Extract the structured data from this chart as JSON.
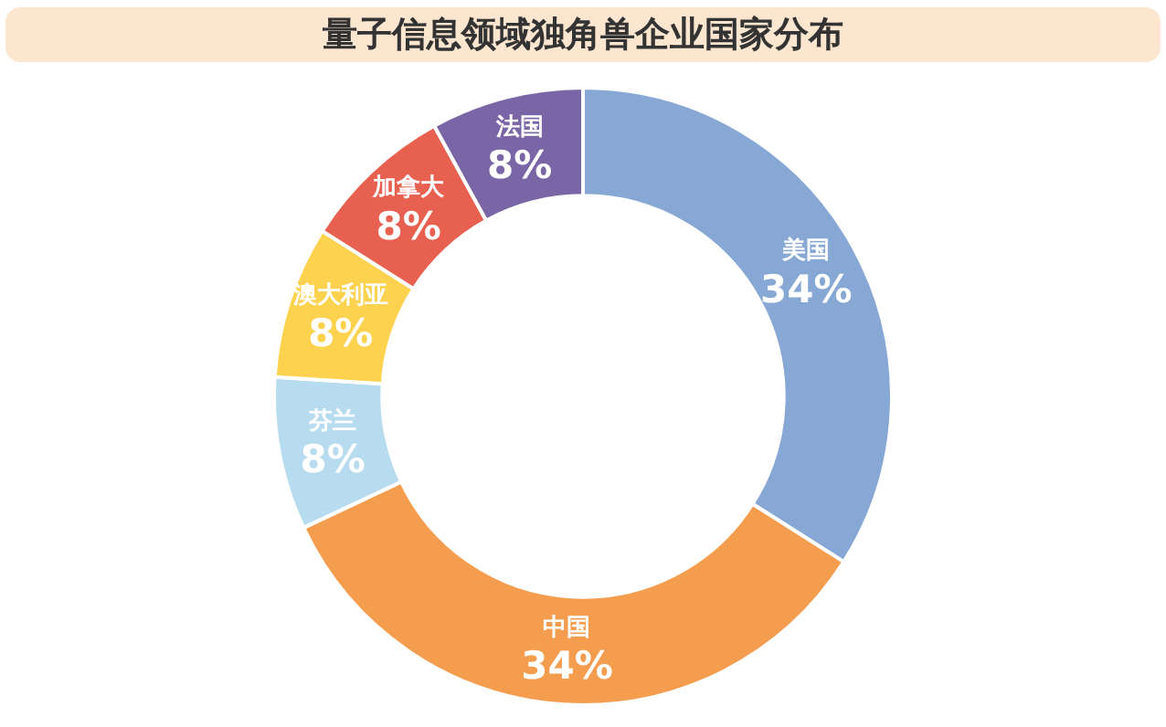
{
  "chart_data": {
    "type": "donut",
    "title": "量子信息领域独角兽企业国家分布",
    "categories": [
      "美国",
      "中国",
      "芬兰",
      "澳大利亚",
      "加拿大",
      "法国"
    ],
    "values": [
      34,
      34,
      8,
      8,
      8,
      8
    ],
    "value_labels": [
      "34%",
      "34%",
      "8%",
      "8%",
      "8%",
      "8%"
    ],
    "colors": [
      "#87a8d4",
      "#f59d4f",
      "#b8dcef",
      "#fdd24f",
      "#e8604f",
      "#7a65a6"
    ],
    "legend": false
  }
}
